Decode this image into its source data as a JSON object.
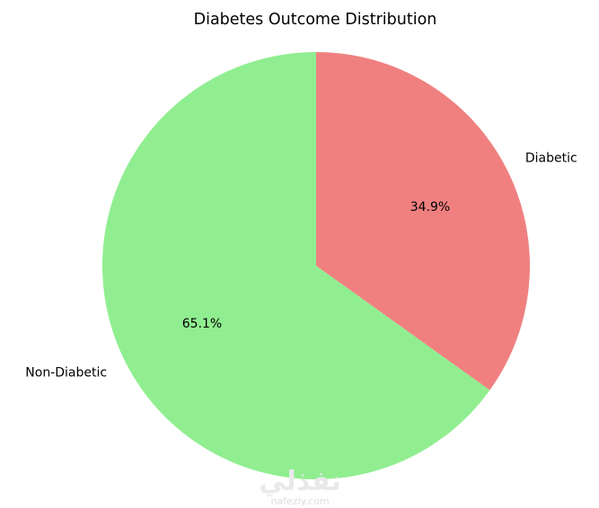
{
  "chart_data": {
    "type": "pie",
    "title": "Diabetes Outcome Distribution",
    "slices": [
      {
        "label": "Non-Diabetic",
        "value": 65.1,
        "pct_label": "65.1%",
        "color": "#90ee90"
      },
      {
        "label": "Diabetic",
        "value": 34.9,
        "pct_label": "34.9%",
        "color": "#f08080"
      }
    ],
    "start_angle_deg": 90,
    "direction": "counterclockwise"
  },
  "watermark": {
    "logo_text": "نفذلي",
    "domain": "nafezly.com"
  }
}
